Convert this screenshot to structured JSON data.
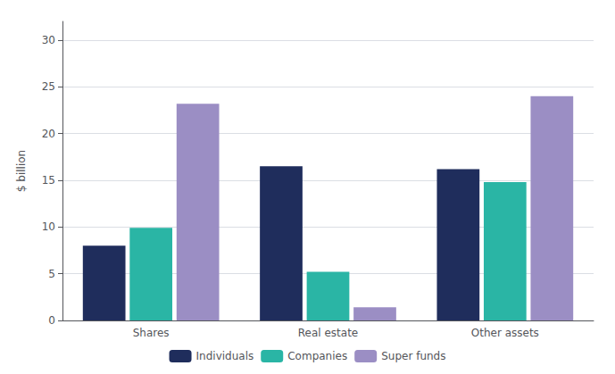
{
  "chart_data": {
    "type": "bar",
    "categories": [
      "Shares",
      "Real estate",
      "Other assets"
    ],
    "series": [
      {
        "name": "Individuals",
        "color": "#1f2d5c",
        "values": [
          8.0,
          16.5,
          16.2
        ]
      },
      {
        "name": "Companies",
        "color": "#2ab5a5",
        "values": [
          9.9,
          5.2,
          14.8
        ]
      },
      {
        "name": "Super funds",
        "color": "#9b8ec4",
        "values": [
          23.2,
          1.4,
          24.0
        ]
      }
    ],
    "ylabel": "$ billion",
    "ylim": [
      0,
      32
    ],
    "yticks": [
      0,
      5,
      10,
      15,
      20,
      25,
      30
    ],
    "grid": true,
    "legend": "bottom"
  }
}
